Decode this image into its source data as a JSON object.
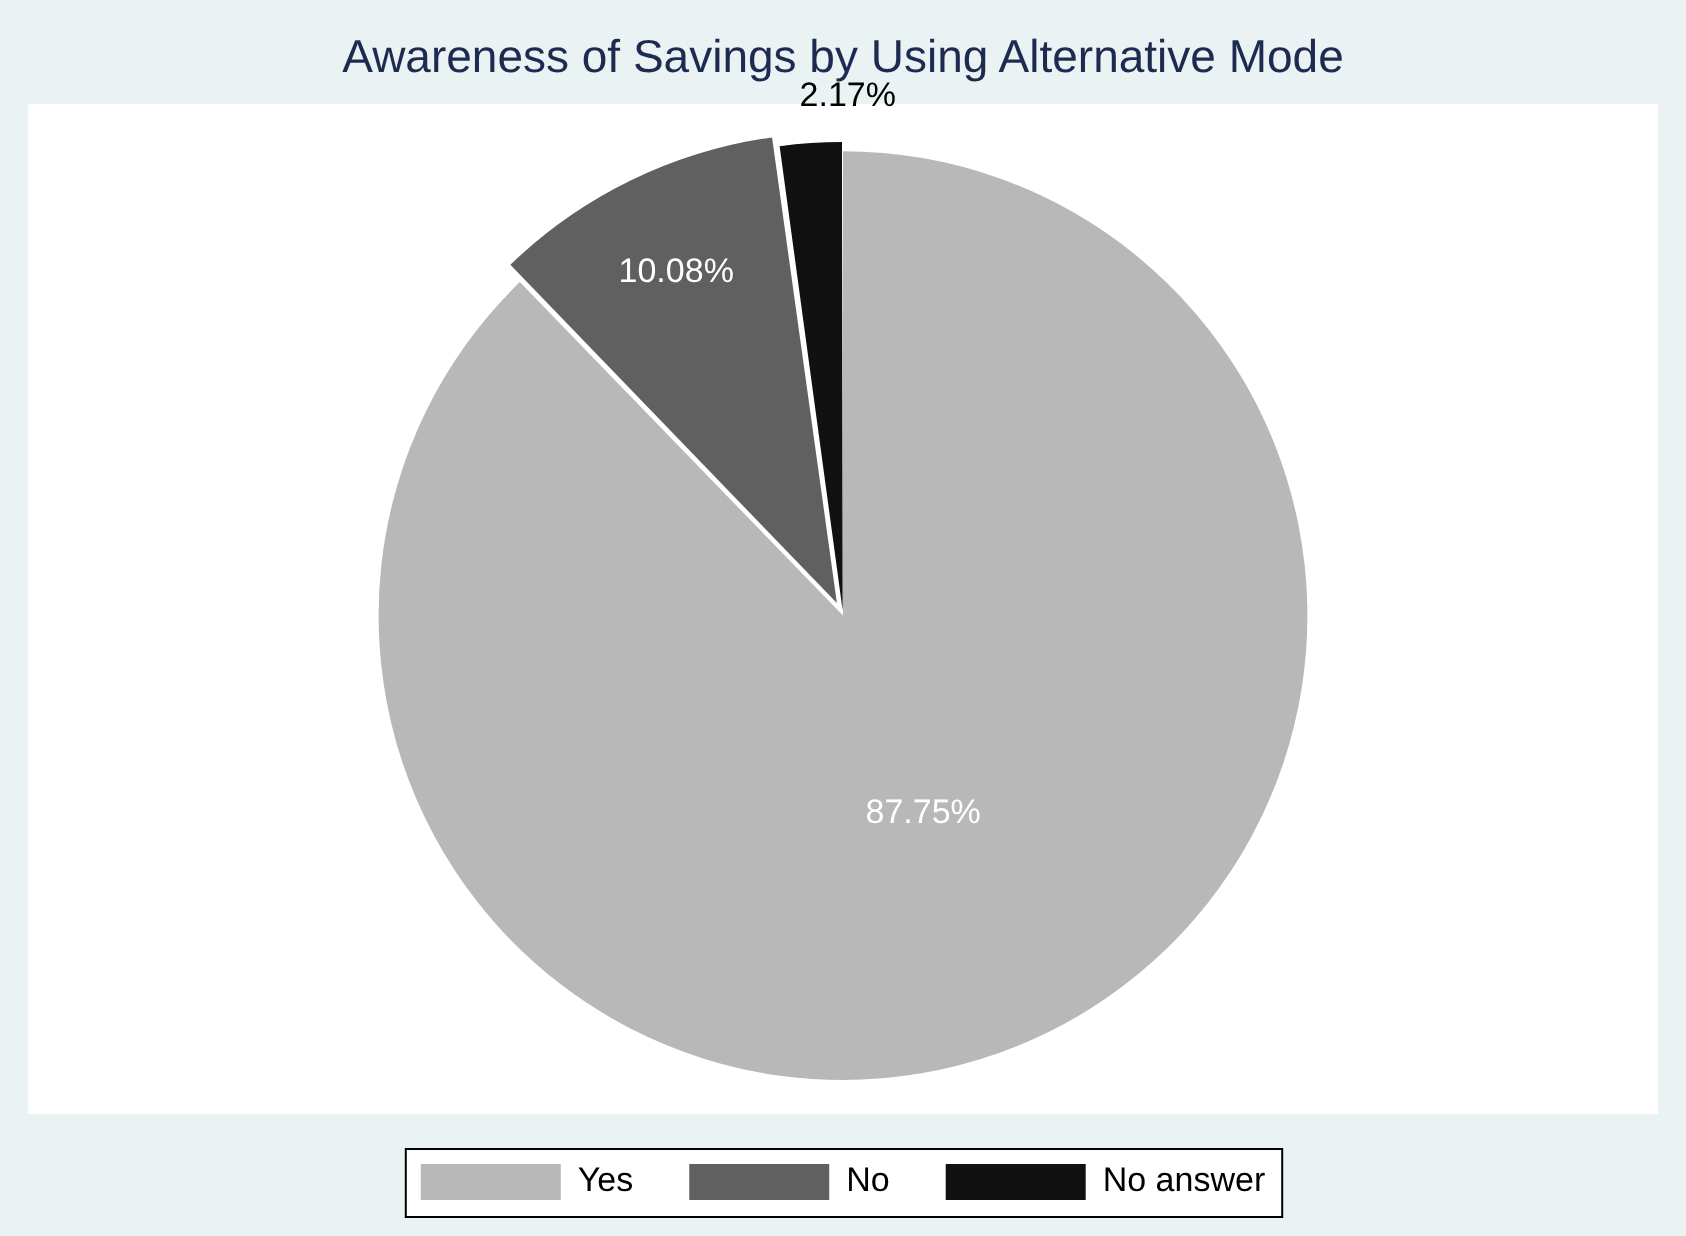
{
  "chart_data": {
    "type": "pie",
    "title": "Awareness of Savings by Using Alternative Mode",
    "categories": [
      "Yes",
      "No",
      "No answer"
    ],
    "values": [
      87.75,
      10.08,
      2.17
    ],
    "colors": [
      "#b8b8b8",
      "#606060",
      "#111111"
    ],
    "value_labels": [
      "87.75%",
      "10.08%",
      "2.17%"
    ],
    "legend": "bottom"
  }
}
